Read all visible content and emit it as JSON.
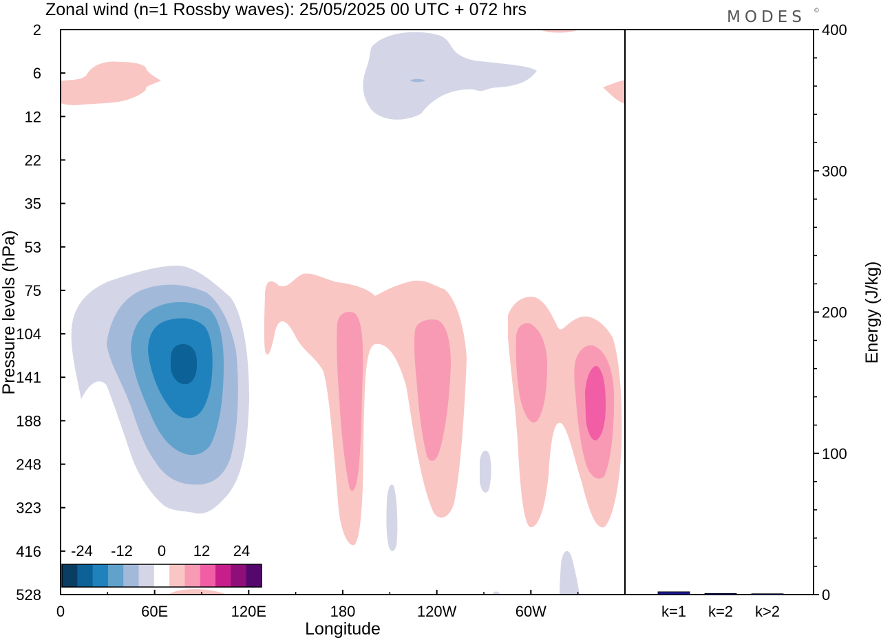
{
  "title": "Zonal wind (n=1 Rossby waves):  25/05/2025  00 UTC  + 072 hrs",
  "brand": "MODES",
  "brand_mark": "©",
  "chart_data": [
    {
      "type": "heatmap",
      "title": "Zonal wind (n=1 Rossby waves):  25/05/2025  00 UTC  + 072 hrs",
      "xlabel": "Longitude",
      "ylabel": "Pressure levels (hPa)",
      "x_ticks": [
        "0",
        "60E",
        "120E",
        "180",
        "120W",
        "60W"
      ],
      "x_tick_values": [
        0,
        60,
        120,
        180,
        240,
        300
      ],
      "xlim": [
        0,
        360
      ],
      "y_ticks": [
        "2",
        "6",
        "12",
        "22",
        "35",
        "53",
        "75",
        "104",
        "141",
        "188",
        "248",
        "323",
        "416",
        "528"
      ],
      "y_scale": "pressure levels (equally spaced, top = 2 hPa, bottom = 528 hPa)",
      "colorbar": {
        "labels": [
          "-24",
          "-12",
          "0",
          "12",
          "24"
        ],
        "label_values": [
          -24,
          -12,
          0,
          12,
          24
        ],
        "levels": [
          -30,
          -25,
          -20,
          -15,
          -10,
          -5,
          0,
          5,
          10,
          15,
          20,
          25,
          30
        ],
        "colors": [
          "#0a3d62",
          "#0c6296",
          "#1f82bd",
          "#60a2cc",
          "#a3b9d9",
          "#d4d5e6",
          "#ffffff",
          "#f9c6c4",
          "#f99ab4",
          "#f15ea5",
          "#c61f8c",
          "#8e0f78",
          "#54086b"
        ],
        "placement": "bottom-left"
      },
      "features": [
        {
          "sign": "negative",
          "max_abs": 27,
          "center_lon": 78,
          "center_level": "120"
        },
        {
          "sign": "negative",
          "max_abs": 5,
          "center_lon": 235,
          "center_level": "6"
        },
        {
          "sign": "positive",
          "max_abs": 12,
          "center_lon": 183,
          "center_level": "150"
        },
        {
          "sign": "positive",
          "max_abs": 12,
          "center_lon": 238,
          "center_level": "141"
        },
        {
          "sign": "positive",
          "max_abs": 12,
          "center_lon": 300,
          "center_level": "130"
        },
        {
          "sign": "positive",
          "max_abs": 16,
          "center_lon": 341,
          "center_level": "160"
        },
        {
          "sign": "positive",
          "max_abs": 5,
          "center_lon": 30,
          "center_level": "7"
        }
      ]
    },
    {
      "type": "bar",
      "ylabel": "Energy (J/kg)",
      "categories": [
        "k=1",
        "k=2",
        "k>2"
      ],
      "values": [
        2,
        0.8,
        0.6
      ],
      "ylim": [
        0,
        400
      ],
      "y_ticks": [
        "0",
        "100",
        "200",
        "300",
        "400"
      ],
      "bar_color": "#1a1a8c",
      "grid": false
    }
  ]
}
